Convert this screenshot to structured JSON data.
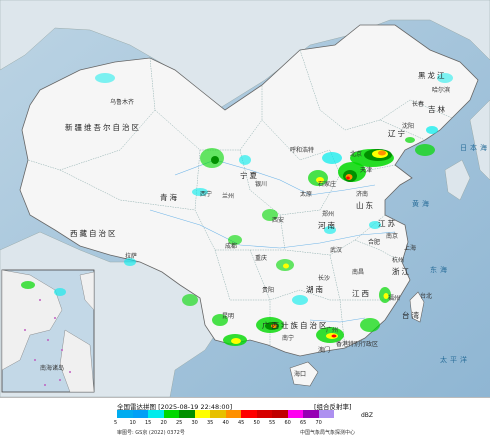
{
  "footer": {
    "title": "全国雷达拼图 [2025-08-19 22:48:00]",
    "product": "[组合反射率]",
    "unit": "dBZ",
    "review": "审图号: GS京 (2022) 0372号",
    "agency": "中国气象局气象探测中心"
  },
  "legend": {
    "values": [
      "5",
      "10",
      "15",
      "20",
      "25",
      "30",
      "35",
      "40",
      "45",
      "50",
      "55",
      "60",
      "65",
      "70"
    ],
    "colors": [
      "#00acf0",
      "#01a0f6",
      "#00ecec",
      "#00d800",
      "#019000",
      "#ffff00",
      "#e7c000",
      "#ff9000",
      "#ff0000",
      "#d60000",
      "#c00000",
      "#ff00f0",
      "#9600b4",
      "#ad90f0"
    ]
  },
  "places": [
    {
      "name": "黑龙江",
      "id": "heilongjiang"
    },
    {
      "name": "哈尔滨",
      "id": "haerbin"
    },
    {
      "name": "吉林",
      "id": "jilin"
    },
    {
      "name": "长春",
      "id": "changchun"
    },
    {
      "name": "沈阳",
      "id": "shenyang"
    },
    {
      "name": "辽宁",
      "id": "liaoning"
    },
    {
      "name": "呼和浩特",
      "id": "huhehaote"
    },
    {
      "name": "北京",
      "id": "beijing"
    },
    {
      "name": "天津",
      "id": "tianjin"
    },
    {
      "name": "石家庄",
      "id": "shijiazhuang"
    },
    {
      "name": "太原",
      "id": "taiyuan"
    },
    {
      "name": "济南",
      "id": "jinan"
    },
    {
      "name": "山东",
      "id": "shandong"
    },
    {
      "name": "银川",
      "id": "yinchuan"
    },
    {
      "name": "宁夏",
      "id": "ningxia"
    },
    {
      "name": "乌鲁木齐",
      "id": "wulumuqi"
    },
    {
      "name": "新疆维吾尔自治区",
      "id": "xinjiang"
    },
    {
      "name": "西宁",
      "id": "xining"
    },
    {
      "name": "兰州",
      "id": "lanzhou"
    },
    {
      "name": "青海",
      "id": "qinghai"
    },
    {
      "name": "西安",
      "id": "xian"
    },
    {
      "name": "郑州",
      "id": "zhengzhou"
    },
    {
      "name": "河南",
      "id": "henan"
    },
    {
      "name": "合肥",
      "id": "hefei"
    },
    {
      "name": "南京",
      "id": "nanjing"
    },
    {
      "name": "江苏",
      "id": "jiangsu"
    },
    {
      "name": "上海",
      "id": "shanghai"
    },
    {
      "name": "杭州",
      "id": "hangzhou"
    },
    {
      "name": "浙江",
      "id": "zhejiang"
    },
    {
      "name": "武汉",
      "id": "wuhan"
    },
    {
      "name": "成都",
      "id": "chengdu"
    },
    {
      "name": "重庆",
      "id": "chongqing"
    },
    {
      "name": "拉萨",
      "id": "lasa"
    },
    {
      "name": "西藏自治区",
      "id": "xizang"
    },
    {
      "name": "长沙",
      "id": "changsha"
    },
    {
      "name": "湖南",
      "id": "hunan"
    },
    {
      "name": "南昌",
      "id": "nanchang"
    },
    {
      "name": "江西",
      "id": "jiangxi"
    },
    {
      "name": "福州",
      "id": "fuzhou"
    },
    {
      "name": "贵阳",
      "id": "guiyang"
    },
    {
      "name": "昆明",
      "id": "kunming"
    },
    {
      "name": "南宁",
      "id": "nanning"
    },
    {
      "name": "广西壮族自治区",
      "id": "guangxi"
    },
    {
      "name": "广州",
      "id": "guangzhou"
    },
    {
      "name": "香港特别行政区",
      "id": "hongkong"
    },
    {
      "name": "澳门",
      "id": "macau"
    },
    {
      "name": "海口",
      "id": "haikou"
    },
    {
      "name": "台北",
      "id": "taipei"
    },
    {
      "name": "台湾",
      "id": "taiwan"
    }
  ],
  "seas": [
    {
      "name": "日本海",
      "id": "japan-sea"
    },
    {
      "name": "黄海",
      "id": "yellow-sea"
    },
    {
      "name": "东海",
      "id": "east-sea"
    },
    {
      "name": "太平洋",
      "id": "pacific"
    },
    {
      "name": "南海诸岛",
      "id": "south-china-sea-islands"
    }
  ]
}
